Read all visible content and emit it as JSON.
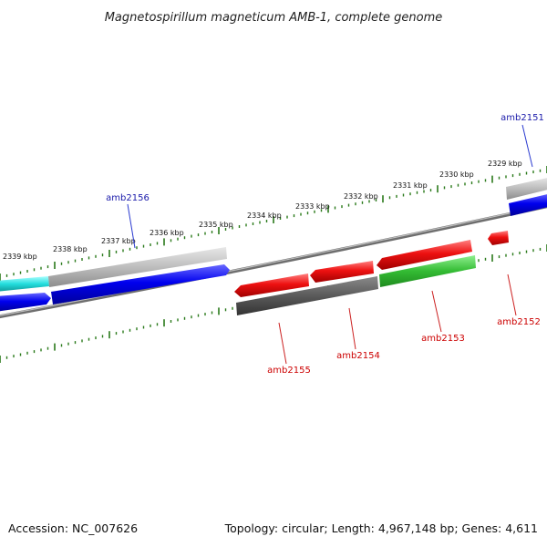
{
  "title": "Magnetospirillum magneticum AMB-1, complete genome",
  "scale": {
    "unit": "kbp",
    "ticks": [
      {
        "label": "2339 kbp"
      },
      {
        "label": "2338 kbp"
      },
      {
        "label": "2337 kbp"
      },
      {
        "label": "2336 kbp"
      },
      {
        "label": "2335 kbp"
      },
      {
        "label": "2334 kbp"
      },
      {
        "label": "2333 kbp"
      },
      {
        "label": "2332 kbp"
      },
      {
        "label": "2331 kbp"
      },
      {
        "label": "2330 kbp"
      },
      {
        "label": "2329 kbp"
      }
    ]
  },
  "genes": [
    {
      "name": "amb2151",
      "strand": "forward",
      "label_color": "#1a1aaa",
      "feature_color": "#0000ee"
    },
    {
      "name": "amb2152",
      "strand": "reverse",
      "label_color": "#cc0000",
      "feature_color": "#ee1111"
    },
    {
      "name": "amb2153",
      "strand": "reverse",
      "label_color": "#cc0000",
      "feature_color": "#ee1111"
    },
    {
      "name": "amb2154",
      "strand": "reverse",
      "label_color": "#cc0000",
      "feature_color": "#ee1111"
    },
    {
      "name": "amb2155",
      "strand": "reverse",
      "label_color": "#cc0000",
      "feature_color": "#ee1111"
    },
    {
      "name": "amb2156",
      "strand": "forward",
      "label_color": "#1a1aaa",
      "feature_color": "#0000ee"
    }
  ],
  "colors": {
    "backbone": "#7a7a7a",
    "tick": "#2a7a1a",
    "forward_cds": "#0000ee",
    "reverse_cds": "#ee1111",
    "gene_span": "#b0b0b0",
    "dark_span": "#555555",
    "green_span": "#33bb33",
    "cyan_span": "#22dddd"
  },
  "footer": {
    "accession": "Accession: NC_007626",
    "summary": "Topology: circular; Length: 4,967,148 bp; Genes: 4,611"
  }
}
